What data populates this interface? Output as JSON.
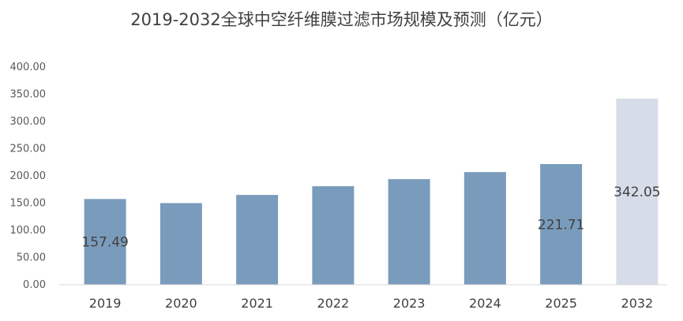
{
  "chart_data": {
    "type": "bar",
    "title": "2019-2032全球中空纤维膜过滤市场规模及预测（亿元）",
    "categories": [
      "2019",
      "2020",
      "2021",
      "2022",
      "2023",
      "2024",
      "2025",
      "2032"
    ],
    "values": [
      157.49,
      150,
      165,
      181,
      194,
      207,
      221.71,
      342.05
    ],
    "data_labels": [
      {
        "category": "2019",
        "text": "157.49"
      },
      {
        "category": "2025",
        "text": "221.71"
      },
      {
        "category": "2032",
        "text": "342.05"
      }
    ],
    "bar_colors": {
      "actual": "#7a9cbc",
      "forecast": "#d6dde8"
    },
    "forecast_categories": [
      "2032"
    ],
    "y_ticks": [
      "0.00",
      "50.00",
      "100.00",
      "150.00",
      "200.00",
      "250.00",
      "300.00",
      "350.00",
      "400.00"
    ],
    "ylim": [
      0,
      400
    ],
    "xlabel": "",
    "ylabel": "",
    "grid": false,
    "legend": "none"
  }
}
